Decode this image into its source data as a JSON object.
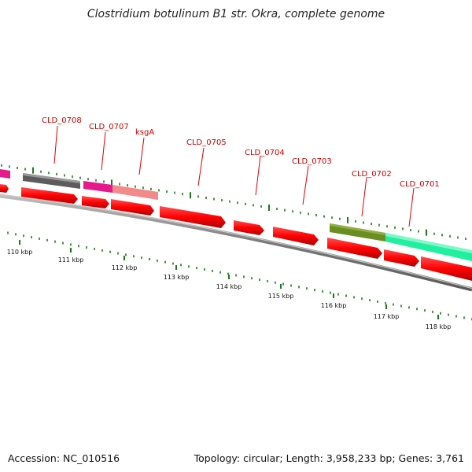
{
  "title": "Clostridium botulinum B1 str. Okra, complete genome",
  "footer": {
    "accession": "Accession: NC_010516",
    "summary": "Topology: circular; Length: 3,958,233 bp; Genes: 3,761"
  },
  "gene_labels": [
    "CLD_0708",
    "CLD_0707",
    "ksgA",
    "CLD_0705",
    "CLD_0704",
    "CLD_0703",
    "CLD_0702",
    "CLD_0701"
  ],
  "ruler_labels": [
    "110 kbp",
    "111 kbp",
    "112 kbp",
    "113 kbp",
    "114 kbp",
    "115 kbp",
    "116 kbp",
    "117 kbp",
    "118 kbp"
  ],
  "colors": {
    "cds": "#ff0000",
    "gene_label": "#cc0000",
    "tick": "#1a7a1a",
    "backbone": "#808080",
    "gray_feature": "#606060",
    "magenta_feature": "#e8198a",
    "pink_feature": "#f08080",
    "olive_feature": "#6b8e23",
    "mint_feature": "#20f0a0"
  }
}
